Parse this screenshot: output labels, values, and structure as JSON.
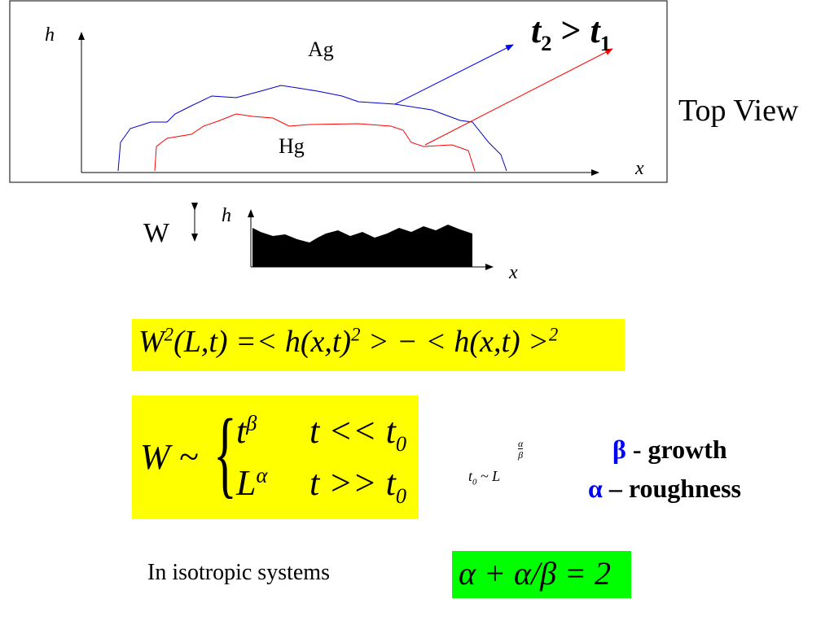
{
  "diagram": {
    "y_label": "h",
    "x_label": "x",
    "upper_label": "Ag",
    "lower_label": "Hg",
    "relation": {
      "left": "t",
      "left_sub": "2",
      "op": ">",
      "right": "t",
      "right_sub": "1"
    }
  },
  "side_label": "Top View",
  "profile": {
    "width_label": "W",
    "y_label": "h",
    "x_label": "x"
  },
  "width_definition": [
    "W",
    "2",
    "(L,t) =< h(x,t)",
    "2",
    " > − < h(x,t) >",
    "2"
  ],
  "scaling": {
    "lhs": "W ~",
    "cases": [
      {
        "base": "t",
        "exp": "β",
        "cond": "t << t",
        "cond_sub": "0"
      },
      {
        "base": "L",
        "exp": "α",
        "cond": "t >> t",
        "cond_sub": "0"
      }
    ]
  },
  "crossover": {
    "base": "t",
    "sub": "0",
    "mid": " ~ L",
    "exp_num": "α",
    "exp_den": "β"
  },
  "exponents": [
    {
      "symbol": "β",
      "text": " - growth"
    },
    {
      "symbol": "α",
      "text": " – roughness"
    }
  ],
  "isotropic": {
    "text": "In isotropic systems",
    "relation": "α + α/β = 2"
  }
}
